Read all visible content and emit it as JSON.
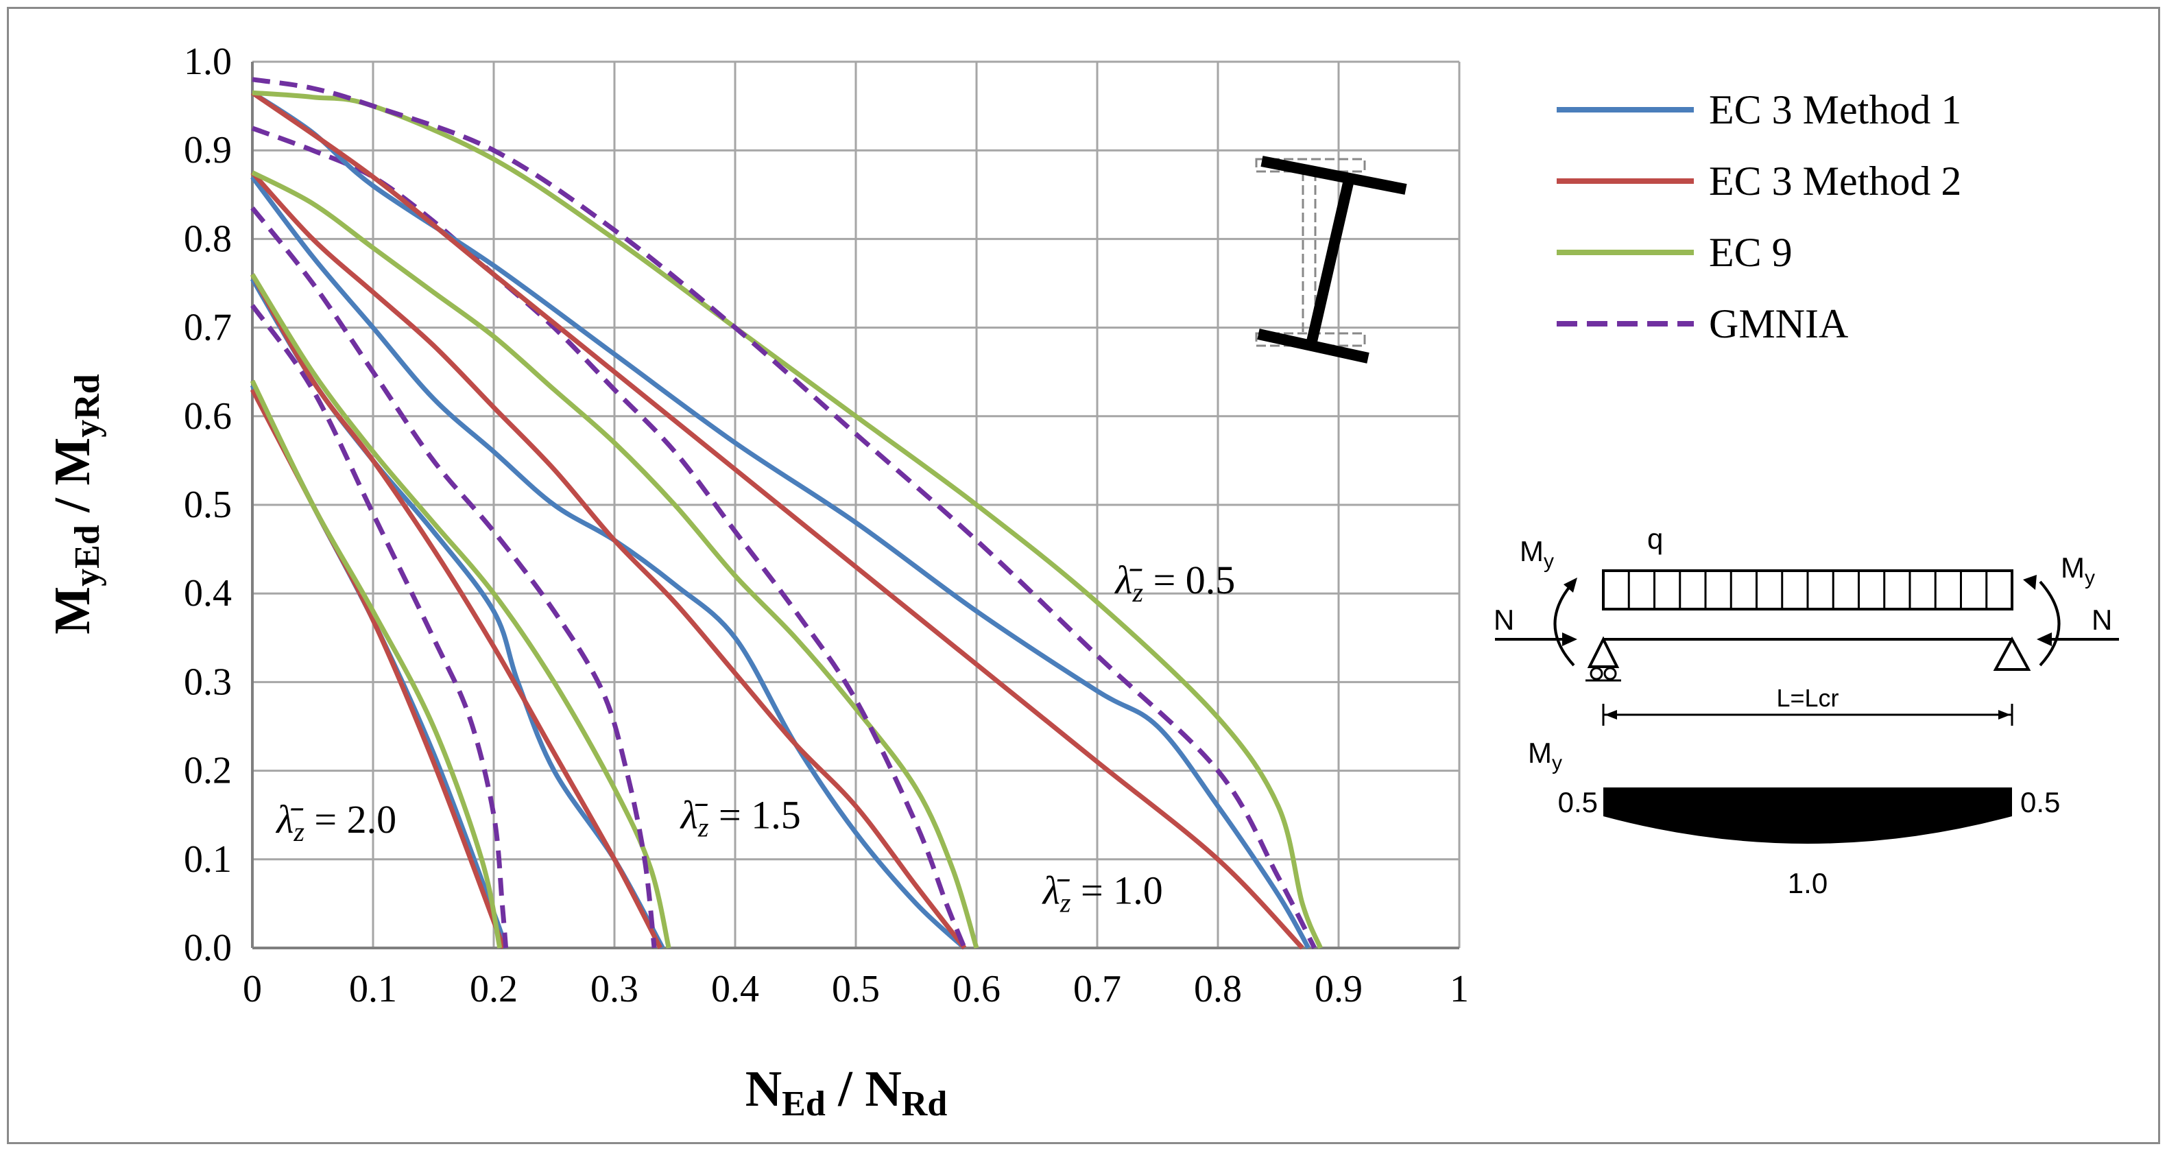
{
  "chart_data": {
    "type": "line",
    "xlabel": {
      "main": "N",
      "sub1": "Ed",
      "sep": " / ",
      "main2": "N",
      "sub2": "Rd"
    },
    "ylabel": {
      "main": "M",
      "sub1": "yEd",
      "sep": " / ",
      "main2": "M",
      "sub2": "yRd"
    },
    "xlim": [
      0,
      1
    ],
    "ylim": [
      0,
      1
    ],
    "x_ticks": [
      "0",
      "0.1",
      "0.2",
      "0.3",
      "0.4",
      "0.5",
      "0.6",
      "0.7",
      "0.8",
      "0.9",
      "1"
    ],
    "y_ticks": [
      "0.0",
      "0.1",
      "0.2",
      "0.3",
      "0.4",
      "0.5",
      "0.6",
      "0.7",
      "0.8",
      "0.9",
      "1.0"
    ],
    "grid": true,
    "legend_position": "right",
    "legend": [
      {
        "name": "EC 3 Method 1",
        "color": "#4a7ebb",
        "dash": false
      },
      {
        "name": "EC 3 Method 2",
        "color": "#be4b48",
        "dash": false
      },
      {
        "name": "EC 9",
        "color": "#98b954",
        "dash": false
      },
      {
        "name": "GMNIA",
        "color": "#7030a0",
        "dash": true
      }
    ],
    "annotations": [
      {
        "symbol": "λ̄",
        "sub": "z",
        "value": " = 2.0",
        "x": 0.02,
        "y": 0.13
      },
      {
        "symbol": "λ̄",
        "sub": "z",
        "value": " = 1.5",
        "x": 0.355,
        "y": 0.135
      },
      {
        "symbol": "λ̄",
        "sub": "z",
        "value": " = 1.0",
        "x": 0.655,
        "y": 0.05
      },
      {
        "symbol": "λ̄",
        "sub": "z",
        "value": " = 0.5",
        "x": 0.715,
        "y": 0.4
      }
    ],
    "groups": [
      {
        "slenderness": "2.0",
        "series": [
          {
            "legend_index": 0,
            "points": [
              [
                0,
                0.635
              ],
              [
                0.05,
                0.5
              ],
              [
                0.1,
                0.37
              ],
              [
                0.15,
                0.22
              ],
              [
                0.2,
                0.04
              ],
              [
                0.21,
                0.0
              ]
            ]
          },
          {
            "legend_index": 1,
            "points": [
              [
                0,
                0.63
              ],
              [
                0.05,
                0.5
              ],
              [
                0.1,
                0.37
              ],
              [
                0.15,
                0.21
              ],
              [
                0.2,
                0.03
              ],
              [
                0.208,
                0.0
              ]
            ]
          },
          {
            "legend_index": 2,
            "points": [
              [
                0,
                0.64
              ],
              [
                0.05,
                0.5
              ],
              [
                0.1,
                0.38
              ],
              [
                0.15,
                0.25
              ],
              [
                0.19,
                0.1
              ],
              [
                0.205,
                0.0
              ]
            ]
          },
          {
            "legend_index": 3,
            "points": [
              [
                0,
                0.725
              ],
              [
                0.05,
                0.63
              ],
              [
                0.1,
                0.49
              ],
              [
                0.15,
                0.35
              ],
              [
                0.18,
                0.26
              ],
              [
                0.2,
                0.15
              ],
              [
                0.207,
                0.05
              ],
              [
                0.21,
                0.0
              ]
            ]
          }
        ]
      },
      {
        "slenderness": "1.5",
        "series": [
          {
            "legend_index": 0,
            "points": [
              [
                0,
                0.755
              ],
              [
                0.05,
                0.64
              ],
              [
                0.1,
                0.55
              ],
              [
                0.15,
                0.47
              ],
              [
                0.2,
                0.38
              ],
              [
                0.22,
                0.3
              ],
              [
                0.25,
                0.2
              ],
              [
                0.3,
                0.1
              ],
              [
                0.34,
                0.0
              ]
            ]
          },
          {
            "legend_index": 1,
            "points": [
              [
                0,
                0.76
              ],
              [
                0.05,
                0.64
              ],
              [
                0.1,
                0.55
              ],
              [
                0.15,
                0.45
              ],
              [
                0.2,
                0.34
              ],
              [
                0.25,
                0.22
              ],
              [
                0.3,
                0.1
              ],
              [
                0.338,
                0.0
              ]
            ]
          },
          {
            "legend_index": 2,
            "points": [
              [
                0,
                0.76
              ],
              [
                0.05,
                0.65
              ],
              [
                0.1,
                0.56
              ],
              [
                0.15,
                0.48
              ],
              [
                0.2,
                0.4
              ],
              [
                0.25,
                0.3
              ],
              [
                0.3,
                0.18
              ],
              [
                0.33,
                0.09
              ],
              [
                0.345,
                0.0
              ]
            ]
          },
          {
            "legend_index": 3,
            "points": [
              [
                0,
                0.835
              ],
              [
                0.05,
                0.75
              ],
              [
                0.1,
                0.65
              ],
              [
                0.15,
                0.55
              ],
              [
                0.2,
                0.47
              ],
              [
                0.25,
                0.38
              ],
              [
                0.29,
                0.29
              ],
              [
                0.31,
                0.2
              ],
              [
                0.325,
                0.1
              ],
              [
                0.333,
                0.0
              ]
            ]
          }
        ]
      },
      {
        "slenderness": "1.0",
        "series": [
          {
            "legend_index": 0,
            "points": [
              [
                0,
                0.87
              ],
              [
                0.05,
                0.78
              ],
              [
                0.1,
                0.7
              ],
              [
                0.15,
                0.62
              ],
              [
                0.2,
                0.56
              ],
              [
                0.25,
                0.5
              ],
              [
                0.3,
                0.46
              ],
              [
                0.35,
                0.41
              ],
              [
                0.4,
                0.35
              ],
              [
                0.45,
                0.23
              ],
              [
                0.5,
                0.13
              ],
              [
                0.55,
                0.05
              ],
              [
                0.59,
                0.0
              ]
            ]
          },
          {
            "legend_index": 1,
            "points": [
              [
                0,
                0.875
              ],
              [
                0.05,
                0.8
              ],
              [
                0.1,
                0.74
              ],
              [
                0.15,
                0.68
              ],
              [
                0.2,
                0.61
              ],
              [
                0.25,
                0.54
              ],
              [
                0.3,
                0.46
              ],
              [
                0.35,
                0.39
              ],
              [
                0.4,
                0.31
              ],
              [
                0.45,
                0.23
              ],
              [
                0.5,
                0.16
              ],
              [
                0.55,
                0.07
              ],
              [
                0.59,
                0.0
              ]
            ]
          },
          {
            "legend_index": 2,
            "points": [
              [
                0,
                0.875
              ],
              [
                0.05,
                0.84
              ],
              [
                0.1,
                0.79
              ],
              [
                0.15,
                0.74
              ],
              [
                0.2,
                0.69
              ],
              [
                0.25,
                0.63
              ],
              [
                0.3,
                0.57
              ],
              [
                0.35,
                0.5
              ],
              [
                0.4,
                0.42
              ],
              [
                0.45,
                0.35
              ],
              [
                0.5,
                0.27
              ],
              [
                0.55,
                0.18
              ],
              [
                0.58,
                0.09
              ],
              [
                0.6,
                0.0
              ]
            ]
          },
          {
            "legend_index": 3,
            "points": [
              [
                0,
                0.925
              ],
              [
                0.05,
                0.9
              ],
              [
                0.1,
                0.87
              ],
              [
                0.15,
                0.82
              ],
              [
                0.2,
                0.76
              ],
              [
                0.25,
                0.7
              ],
              [
                0.3,
                0.63
              ],
              [
                0.35,
                0.56
              ],
              [
                0.4,
                0.47
              ],
              [
                0.45,
                0.38
              ],
              [
                0.5,
                0.28
              ],
              [
                0.55,
                0.14
              ],
              [
                0.575,
                0.05
              ],
              [
                0.59,
                0.0
              ]
            ]
          }
        ]
      },
      {
        "slenderness": "0.5",
        "series": [
          {
            "legend_index": 0,
            "points": [
              [
                0,
                0.965
              ],
              [
                0.05,
                0.92
              ],
              [
                0.1,
                0.86
              ],
              [
                0.2,
                0.77
              ],
              [
                0.3,
                0.67
              ],
              [
                0.4,
                0.57
              ],
              [
                0.5,
                0.48
              ],
              [
                0.6,
                0.38
              ],
              [
                0.7,
                0.29
              ],
              [
                0.75,
                0.25
              ],
              [
                0.8,
                0.16
              ],
              [
                0.85,
                0.06
              ],
              [
                0.875,
                0.0
              ]
            ]
          },
          {
            "legend_index": 1,
            "points": [
              [
                0,
                0.965
              ],
              [
                0.1,
                0.87
              ],
              [
                0.2,
                0.76
              ],
              [
                0.3,
                0.65
              ],
              [
                0.4,
                0.54
              ],
              [
                0.5,
                0.43
              ],
              [
                0.6,
                0.32
              ],
              [
                0.7,
                0.21
              ],
              [
                0.8,
                0.1
              ],
              [
                0.87,
                0.0
              ]
            ]
          },
          {
            "legend_index": 2,
            "points": [
              [
                0,
                0.965
              ],
              [
                0.05,
                0.96
              ],
              [
                0.1,
                0.95
              ],
              [
                0.2,
                0.89
              ],
              [
                0.3,
                0.8
              ],
              [
                0.4,
                0.7
              ],
              [
                0.5,
                0.6
              ],
              [
                0.6,
                0.5
              ],
              [
                0.7,
                0.39
              ],
              [
                0.8,
                0.26
              ],
              [
                0.85,
                0.16
              ],
              [
                0.87,
                0.05
              ],
              [
                0.885,
                0.0
              ]
            ]
          },
          {
            "legend_index": 3,
            "points": [
              [
                0,
                0.98
              ],
              [
                0.05,
                0.97
              ],
              [
                0.1,
                0.95
              ],
              [
                0.2,
                0.9
              ],
              [
                0.3,
                0.81
              ],
              [
                0.4,
                0.7
              ],
              [
                0.5,
                0.58
              ],
              [
                0.6,
                0.46
              ],
              [
                0.7,
                0.33
              ],
              [
                0.8,
                0.2
              ],
              [
                0.85,
                0.08
              ],
              [
                0.88,
                0.0
              ]
            ]
          }
        ]
      }
    ]
  },
  "inset": {
    "moment_label": "M",
    "moment_sub": "y",
    "load_label": "q",
    "axial_label": "N",
    "span_label": "L=Lcr",
    "diagram_label": "M",
    "diagram_sub": "y",
    "end_value_left": "0.5",
    "end_value_right": "0.5",
    "mid_value": "1.0"
  }
}
